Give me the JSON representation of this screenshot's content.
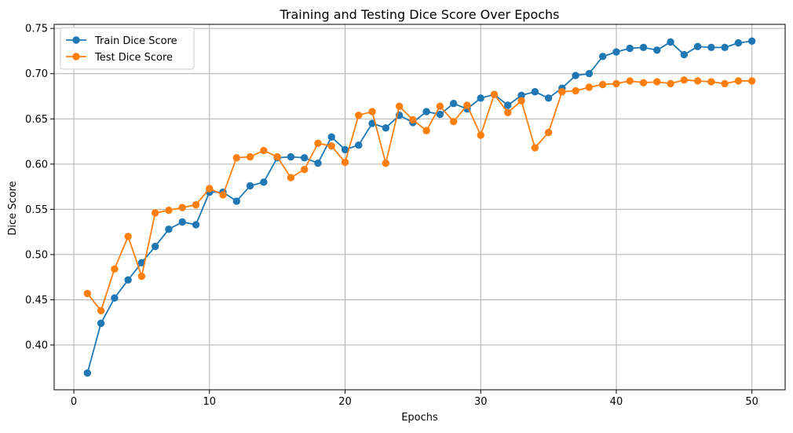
{
  "chart_data": {
    "type": "line",
    "title": "Training and Testing Dice Score Over Epochs",
    "xlabel": "Epochs",
    "ylabel": "Dice Score",
    "xlim": [
      -1.45,
      52.45
    ],
    "ylim": [
      0.3505,
      0.7545
    ],
    "xticks": [
      0,
      10,
      20,
      30,
      40,
      50
    ],
    "xtick_labels": [
      "0",
      "10",
      "20",
      "30",
      "40",
      "50"
    ],
    "yticks": [
      0.4,
      0.45,
      0.5,
      0.55,
      0.6,
      0.65,
      0.7,
      0.75
    ],
    "ytick_labels": [
      "0.40",
      "0.45",
      "0.50",
      "0.55",
      "0.60",
      "0.65",
      "0.70",
      "0.75"
    ],
    "grid": true,
    "legend_position": "top-left",
    "x": [
      1,
      2,
      3,
      4,
      5,
      6,
      7,
      8,
      9,
      10,
      11,
      12,
      13,
      14,
      15,
      16,
      17,
      18,
      19,
      20,
      21,
      22,
      23,
      24,
      25,
      26,
      27,
      28,
      29,
      30,
      31,
      32,
      33,
      34,
      35,
      36,
      37,
      38,
      39,
      40,
      41,
      42,
      43,
      44,
      45,
      46,
      47,
      48,
      49,
      50
    ],
    "series": [
      {
        "name": "Train Dice Score",
        "color": "#1f77b4",
        "values": [
          0.369,
          0.424,
          0.452,
          0.472,
          0.491,
          0.509,
          0.528,
          0.536,
          0.533,
          0.569,
          0.569,
          0.559,
          0.576,
          0.58,
          0.607,
          0.608,
          0.607,
          0.601,
          0.63,
          0.616,
          0.621,
          0.645,
          0.64,
          0.654,
          0.646,
          0.658,
          0.655,
          0.667,
          0.661,
          0.673,
          0.677,
          0.665,
          0.676,
          0.68,
          0.673,
          0.684,
          0.698,
          0.7,
          0.719,
          0.724,
          0.728,
          0.729,
          0.726,
          0.735,
          0.721,
          0.73,
          0.729,
          0.729,
          0.734,
          0.736
        ]
      },
      {
        "name": "Test Dice Score",
        "color": "#ff7f0e",
        "values": [
          0.457,
          0.438,
          0.484,
          0.52,
          0.476,
          0.546,
          0.549,
          0.552,
          0.555,
          0.573,
          0.566,
          0.607,
          0.608,
          0.615,
          0.608,
          0.585,
          0.594,
          0.623,
          0.62,
          0.602,
          0.654,
          0.658,
          0.601,
          0.664,
          0.649,
          0.637,
          0.664,
          0.647,
          0.665,
          0.632,
          0.677,
          0.657,
          0.67,
          0.618,
          0.635,
          0.68,
          0.681,
          0.685,
          0.688,
          0.689,
          0.692,
          0.69,
          0.691,
          0.689,
          0.693,
          0.692,
          0.691,
          0.689,
          0.692,
          0.692
        ]
      }
    ]
  }
}
